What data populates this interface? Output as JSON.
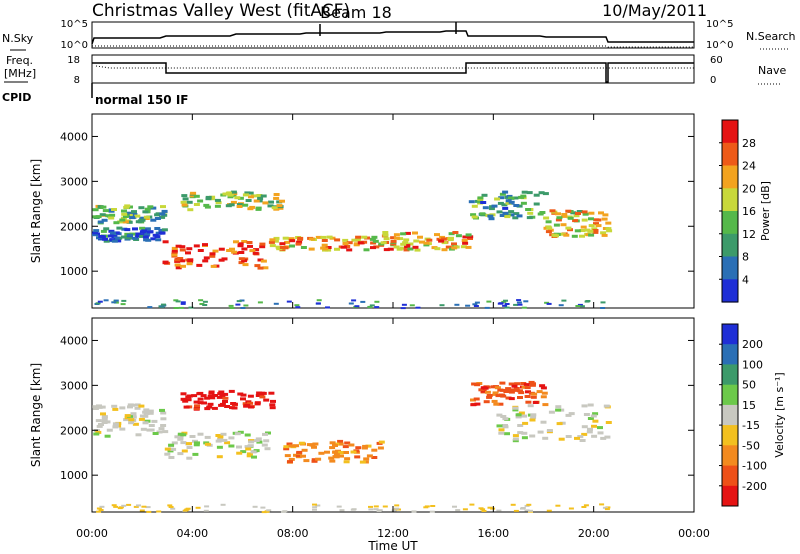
{
  "header": {
    "station": "Christmas Valley West (fitACF)",
    "beam": "Beam 18",
    "date": "10/May/2011"
  },
  "strip_labels": {
    "nsky": "N.Sky",
    "nsky_top": "10^5",
    "nsky_bottom": "10^0",
    "nsearch": "N.Search",
    "nsearch_top": "10^5",
    "nsearch_bottom": "10^0",
    "freq_line1": "Freq.",
    "freq_line2": "[MHz]",
    "freq_top": "18",
    "freq_bottom": "8",
    "nave": "Nave",
    "nave_top": "60",
    "nave_bottom": "0",
    "cpid": "CPID",
    "cpid_value": "normal 150 IF"
  },
  "chart_data": [
    {
      "type": "heatmap",
      "panel": "power",
      "ylabel": "Slant Range [km]",
      "yticks": [
        "1000",
        "2000",
        "3000",
        "4000"
      ],
      "ylim": [
        180,
        4500
      ],
      "xlim": [
        0,
        24
      ],
      "colorbar": {
        "label": "Power [dB]",
        "ticks": [
          "4",
          "8",
          "12",
          "16",
          "20",
          "24",
          "28"
        ],
        "colors": [
          "#1f2fd6",
          "#2a6fb5",
          "#3c9a6a",
          "#55b84a",
          "#c8d83a",
          "#f3a31f",
          "#ee5a18",
          "#e51313"
        ]
      },
      "bands": [
        {
          "t": [
            0,
            2.8
          ],
          "r": [
            2100,
            2500
          ],
          "level": 0.4
        },
        {
          "t": [
            0,
            2.8
          ],
          "r": [
            1700,
            2000
          ],
          "level": 0.2
        },
        {
          "t": [
            2.8,
            6.8
          ],
          "r": [
            1100,
            1700
          ],
          "level": 0.9
        },
        {
          "t": [
            3.5,
            7.5
          ],
          "r": [
            2400,
            2800
          ],
          "level": 0.5
        },
        {
          "t": [
            7.0,
            11.5
          ],
          "r": [
            1500,
            1800
          ],
          "level": 0.7
        },
        {
          "t": [
            11.5,
            15.0
          ],
          "r": [
            1500,
            1900
          ],
          "level": 0.7
        },
        {
          "t": [
            15.0,
            18.0
          ],
          "r": [
            2200,
            2800
          ],
          "level": 0.35
        },
        {
          "t": [
            18.0,
            20.5
          ],
          "r": [
            1800,
            2400
          ],
          "level": 0.6
        }
      ]
    },
    {
      "type": "heatmap",
      "panel": "velocity",
      "xlabel": "Time UT",
      "ylabel": "Slant Range [km]",
      "xticks": [
        "00:00",
        "04:00",
        "08:00",
        "12:00",
        "16:00",
        "20:00",
        "00:00"
      ],
      "yticks": [
        "1000",
        "2000",
        "3000",
        "4000"
      ],
      "ylim": [
        180,
        4500
      ],
      "xlim": [
        0,
        24
      ],
      "colorbar": {
        "label": "Velocity [m s⁻¹]",
        "ticks": [
          "200",
          "100",
          "50",
          "15",
          "-15",
          "-50",
          "-100",
          "-200"
        ],
        "colors": [
          "#1f2fd6",
          "#2a6fb5",
          "#3c9a6a",
          "#6cc94a",
          "#c8c8c0",
          "#f3c01f",
          "#f38a1f",
          "#ee5018",
          "#e51313"
        ]
      },
      "bands": [
        {
          "t": [
            0,
            2.8
          ],
          "r": [
            1900,
            2600
          ],
          "vel": 0
        },
        {
          "t": [
            2.8,
            7.0
          ],
          "r": [
            1400,
            2000
          ],
          "vel": 0
        },
        {
          "t": [
            3.5,
            7.2
          ],
          "r": [
            2500,
            2900
          ],
          "vel": -180
        },
        {
          "t": [
            7.5,
            11.5
          ],
          "r": [
            1300,
            1800
          ],
          "vel": -60
        },
        {
          "t": [
            15.0,
            18.0
          ],
          "r": [
            2600,
            3100
          ],
          "vel": -100
        },
        {
          "t": [
            16.0,
            20.5
          ],
          "r": [
            1800,
            2600
          ],
          "vel": 0
        }
      ]
    }
  ]
}
